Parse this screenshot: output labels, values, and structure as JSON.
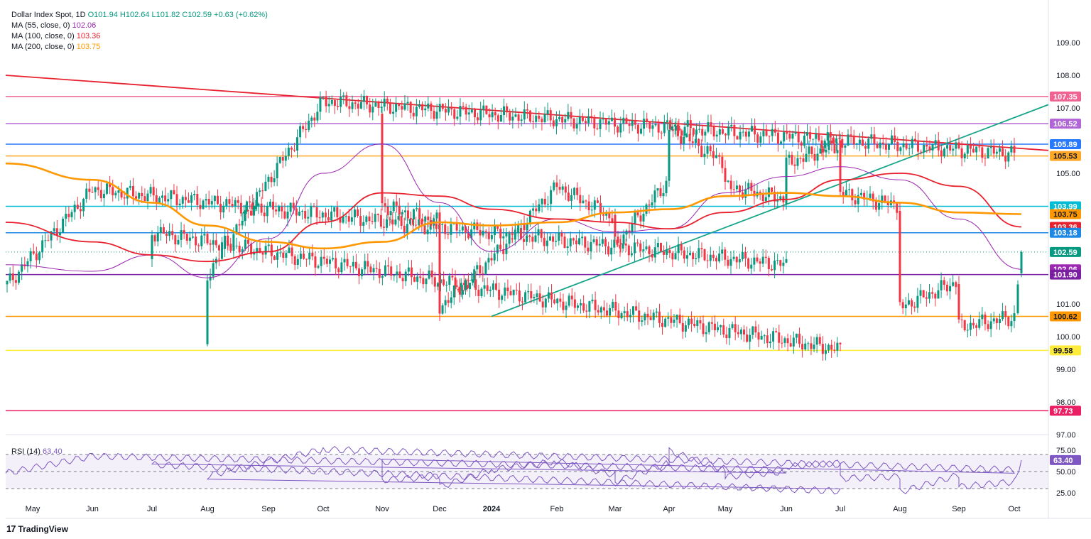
{
  "legend": {
    "title": "Dollar Index Spot, 1D",
    "open": "O101.94",
    "high": "H102.64",
    "low": "L101.82",
    "close": "C102.59",
    "change": "+0.63 (+0.62%)",
    "ma55_label": "MA (55, close, 0)",
    "ma55_value": "102.06",
    "ma100_label": "MA (100, close, 0)",
    "ma100_value": "103.36",
    "ma200_label": "MA (200, close, 0)",
    "ma200_value": "103.75",
    "rsi_label": "RSI (14)",
    "rsi_value": "63.40"
  },
  "brand": "TradingView",
  "colors": {
    "up": "#089981",
    "down": "#f23645",
    "ma55": "#9c27b0",
    "ma100": "#e8212e",
    "ma200": "#ff9800",
    "rsi": "#7e57c2",
    "trend_red": "#e8212e",
    "trend_green": "#17a589"
  },
  "chart_data": [
    {
      "type": "candlestick",
      "title": "Dollar Index Spot, 1D",
      "x_ticks": [
        "May",
        "Jun",
        "Jul",
        "Aug",
        "Sep",
        "Oct",
        "Nov",
        "Dec",
        "2024",
        "Feb",
        "Mar",
        "Apr",
        "May",
        "Jun",
        "Jul",
        "Aug",
        "Sep",
        "Oct"
      ],
      "y_ticks": [
        97.0,
        98.0,
        99.0,
        100.0,
        101.0,
        105.0,
        107.0,
        108.0,
        109.0
      ],
      "ylim": [
        96.7,
        109.5
      ],
      "last_close": 102.59,
      "ohlc_last": {
        "open": 101.94,
        "high": 102.64,
        "low": 101.82,
        "close": 102.59
      },
      "price_path": [
        [
          "May",
          101.6
        ],
        [
          "Jun",
          104.5
        ],
        [
          "Jun",
          102.2
        ],
        [
          "Jul",
          103.2
        ],
        [
          "Jul",
          99.6
        ],
        [
          "Aug",
          101.9
        ],
        [
          "Sep",
          104.8
        ],
        [
          "Oct",
          107.2
        ],
        [
          "Oct",
          105.6
        ],
        [
          "Nov",
          106.9
        ],
        [
          "Nov",
          104.0
        ],
        [
          "Dec",
          103.5
        ],
        [
          "Dec",
          100.9
        ],
        [
          "2024",
          102.4
        ],
        [
          "Feb",
          104.6
        ],
        [
          "Mar",
          103.6
        ],
        [
          "Mar",
          102.8
        ],
        [
          "Apr",
          104.8
        ],
        [
          "Apr",
          106.4
        ],
        [
          "May",
          105.3
        ],
        [
          "May",
          104.6
        ],
        [
          "Jun",
          104.2
        ],
        [
          "Jun",
          105.3
        ],
        [
          "Jul",
          105.9
        ],
        [
          "Jul",
          104.4
        ],
        [
          "Aug",
          104.0
        ],
        [
          "Aug",
          101.9
        ],
        [
          "Aug",
          100.9
        ],
        [
          "Sep",
          101.7
        ],
        [
          "Sep",
          100.3
        ],
        [
          "Oct",
          100.6
        ],
        [
          "Oct",
          102.59
        ]
      ],
      "series": [
        {
          "name": "MA (55, close, 0)",
          "last_value": 102.06,
          "values": [
            [
              "May",
              102.2
            ],
            [
              "Jun",
              102.0
            ],
            [
              "Jul",
              102.5
            ],
            [
              "Aug",
              101.8
            ],
            [
              "Sep",
              103.0
            ],
            [
              "Oct",
              105.0
            ],
            [
              "Nov",
              105.9
            ],
            [
              "Dec",
              104.1
            ],
            [
              "2024",
              102.6
            ],
            [
              "Feb",
              103.6
            ],
            [
              "Mar",
              103.2
            ],
            [
              "Apr",
              103.3
            ],
            [
              "May",
              104.4
            ],
            [
              "Jun",
              104.9
            ],
            [
              "Jul",
              105.2
            ],
            [
              "Aug",
              104.8
            ],
            [
              "Sep",
              103.6
            ],
            [
              "Oct",
              102.06
            ]
          ]
        },
        {
          "name": "MA (100, close, 0)",
          "last_value": 103.36,
          "values": [
            [
              "May",
              103.5
            ],
            [
              "Jun",
              102.9
            ],
            [
              "Jul",
              102.5
            ],
            [
              "Aug",
              102.3
            ],
            [
              "Sep",
              102.6
            ],
            [
              "Oct",
              103.5
            ],
            [
              "Nov",
              104.4
            ],
            [
              "Dec",
              104.3
            ],
            [
              "2024",
              103.9
            ],
            [
              "Feb",
              103.6
            ],
            [
              "Mar",
              103.5
            ],
            [
              "Apr",
              103.3
            ],
            [
              "May",
              103.8
            ],
            [
              "Jun",
              104.2
            ],
            [
              "Jul",
              104.8
            ],
            [
              "Aug",
              105.0
            ],
            [
              "Sep",
              104.6
            ],
            [
              "Oct",
              103.36
            ]
          ]
        },
        {
          "name": "MA (200, close, 0)",
          "last_value": 103.75,
          "values": [
            [
              "May",
              105.3
            ],
            [
              "Jun",
              104.8
            ],
            [
              "Jul",
              104.1
            ],
            [
              "Aug",
              103.4
            ],
            [
              "Sep",
              102.9
            ],
            [
              "Oct",
              102.7
            ],
            [
              "Nov",
              102.9
            ],
            [
              "Dec",
              103.5
            ],
            [
              "2024",
              103.4
            ],
            [
              "Feb",
              103.5
            ],
            [
              "Mar",
              103.8
            ],
            [
              "Apr",
              103.9
            ],
            [
              "May",
              104.3
            ],
            [
              "Jun",
              104.4
            ],
            [
              "Jul",
              104.3
            ],
            [
              "Aug",
              104.1
            ],
            [
              "Sep",
              103.8
            ],
            [
              "Oct",
              103.75
            ]
          ]
        }
      ],
      "horizontal_levels": [
        {
          "value": 107.35,
          "color": "#f06292",
          "label": "107.35"
        },
        {
          "value": 106.52,
          "color": "#b266d6",
          "label": "106.52"
        },
        {
          "value": 105.89,
          "color": "#2979ff",
          "label": "105.89"
        },
        {
          "value": 105.53,
          "color": "#ffa726",
          "label": "105.53"
        },
        {
          "value": 103.99,
          "color": "#00bcd4",
          "label": "103.99"
        },
        {
          "value": 103.18,
          "color": "#1e88e5",
          "label": "103.18"
        },
        {
          "value": 101.9,
          "color": "#7b1fa2",
          "label": "101.90"
        },
        {
          "value": 100.62,
          "color": "#ff9800",
          "label": "100.62"
        },
        {
          "value": 99.58,
          "color": "#ffeb3b",
          "label": "99.58"
        },
        {
          "value": 97.73,
          "color": "#e91e63",
          "label": "97.73"
        }
      ],
      "price_tags": [
        {
          "value": 107.35,
          "label": "107.35",
          "color": "#f06292"
        },
        {
          "value": 106.52,
          "label": "106.52",
          "color": "#b266d6"
        },
        {
          "value": 105.89,
          "label": "105.89",
          "color": "#2979ff"
        },
        {
          "value": 105.53,
          "label": "105.53",
          "color": "#ffa726"
        },
        {
          "value": 103.99,
          "label": "103.99",
          "color": "#00bcd4"
        },
        {
          "value": 103.75,
          "label": "103.75",
          "color": "#ff9800"
        },
        {
          "value": 103.36,
          "label": "103.36",
          "color": "#e8212e"
        },
        {
          "value": 103.18,
          "label": "103.18",
          "color": "#1e88e5"
        },
        {
          "value": 102.59,
          "label": "102.59",
          "color": "#089981"
        },
        {
          "value": 102.06,
          "label": "102.06",
          "color": "#9c27b0"
        },
        {
          "value": 101.9,
          "label": "101.90",
          "color": "#7b1fa2"
        },
        {
          "value": 100.62,
          "label": "100.62",
          "color": "#ff9800"
        },
        {
          "value": 99.58,
          "label": "99.58",
          "color": "#ffeb3b"
        },
        {
          "value": 97.73,
          "label": "97.73",
          "color": "#e91e63"
        }
      ],
      "trendlines": [
        {
          "name": "descending resistance",
          "color": "#e8212e",
          "from": [
            "May",
            108.0
          ],
          "to": [
            "Oct",
            105.7
          ]
        },
        {
          "name": "ascending support",
          "color": "#17a589",
          "from": [
            "2024",
            100.62
          ],
          "to": [
            "Oct",
            107.1
          ]
        }
      ]
    },
    {
      "type": "line",
      "title": "RSI (14)",
      "y_ticks": [
        25.0,
        50.0,
        75.0
      ],
      "ylim": [
        22,
        78
      ],
      "bands": [
        30,
        50,
        70
      ],
      "last_value": 63.4,
      "series": [
        {
          "name": "RSI (14)",
          "values": [
            [
              "May",
              48
            ],
            [
              "Jun",
              68
            ],
            [
              "Jun",
              52
            ],
            [
              "Jul",
              58
            ],
            [
              "Jul",
              27
            ],
            [
              "Aug",
              45
            ],
            [
              "Sep",
              62
            ],
            [
              "Oct",
              76
            ],
            [
              "Oct",
              52
            ],
            [
              "Nov",
              62
            ],
            [
              "Nov",
              40
            ],
            [
              "Dec",
              44
            ],
            [
              "Dec",
              32
            ],
            [
              "2024",
              52
            ],
            [
              "Feb",
              62
            ],
            [
              "Mar",
              46
            ],
            [
              "Mar",
              38
            ],
            [
              "Apr",
              60
            ],
            [
              "Apr",
              74
            ],
            [
              "May",
              52
            ],
            [
              "May",
              44
            ],
            [
              "Jun",
              50
            ],
            [
              "Jun",
              56
            ],
            [
              "Jul",
              60
            ],
            [
              "Jul",
              42
            ],
            [
              "Aug",
              44
            ],
            [
              "Aug",
              30
            ],
            [
              "Aug",
              26
            ],
            [
              "Sep",
              46
            ],
            [
              "Sep",
              32
            ],
            [
              "Oct",
              38
            ],
            [
              "Oct",
              63.4
            ]
          ]
        }
      ]
    }
  ]
}
